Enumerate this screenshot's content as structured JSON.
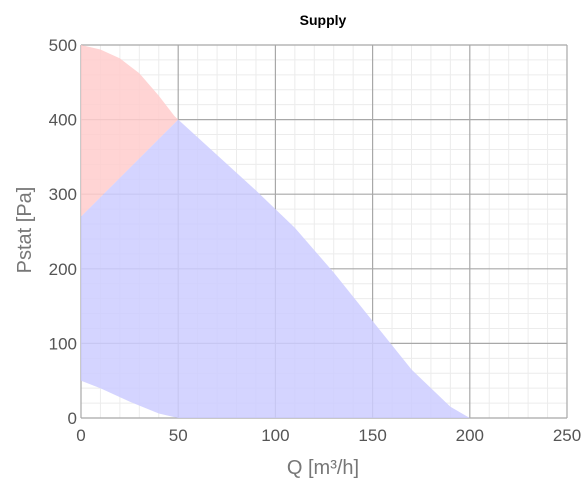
{
  "chart_data": {
    "type": "area",
    "title": "Supply",
    "xlabel": "Q [m³/h]",
    "ylabel": "Pstat [Pa]",
    "xlim": [
      0,
      250
    ],
    "ylim": [
      0,
      500
    ],
    "xticks": [
      0,
      50,
      100,
      150,
      200,
      250
    ],
    "yticks": [
      0,
      100,
      200,
      300,
      400,
      500
    ],
    "x_minor_step": 10,
    "y_minor_step": 20,
    "grid": true,
    "series": [
      {
        "color": "#ffcccc",
        "points": [
          [
            0,
            500
          ],
          [
            10,
            494
          ],
          [
            20,
            482
          ],
          [
            30,
            462
          ],
          [
            40,
            432
          ],
          [
            48,
            405
          ],
          [
            50,
            400
          ],
          [
            0,
            270
          ]
        ]
      },
      {
        "color": "#ccccff",
        "points": [
          [
            0,
            270
          ],
          [
            50,
            400
          ],
          [
            90,
            305
          ],
          [
            110,
            255
          ],
          [
            130,
            195
          ],
          [
            150,
            130
          ],
          [
            170,
            65
          ],
          [
            190,
            15
          ],
          [
            200,
            0
          ],
          [
            50,
            0
          ],
          [
            40,
            6
          ],
          [
            25,
            22
          ],
          [
            10,
            40
          ],
          [
            0,
            50
          ]
        ]
      }
    ]
  }
}
